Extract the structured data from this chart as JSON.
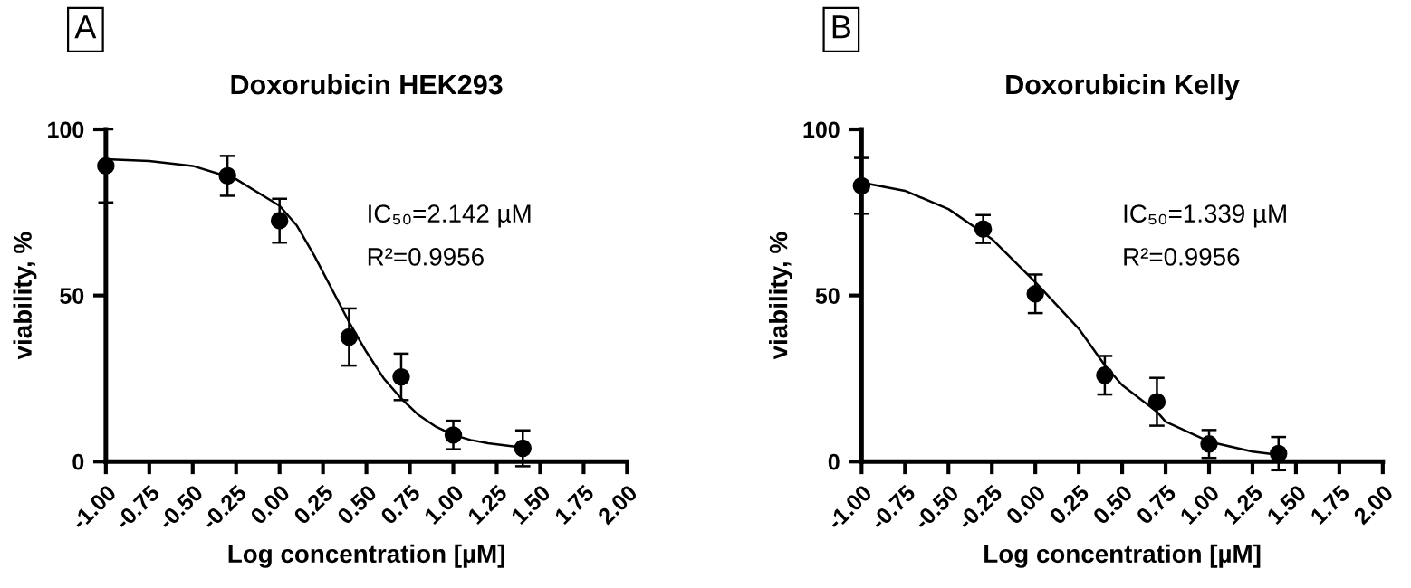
{
  "chart_data": [
    {
      "type": "scatter",
      "title": "Doxorubicin HEK293",
      "xlabel": "Log concentration [µM]",
      "ylabel": "viability, %",
      "annotations": [
        "A",
        "IC₅₀=2.142 µM",
        "R²=0.9956"
      ],
      "xlim": [
        -1,
        2
      ],
      "xticks": [
        {
          "value": -1,
          "label": "-1.00"
        },
        {
          "value": -0.75,
          "label": "-0.75"
        },
        {
          "value": -0.5,
          "label": "-0.50"
        },
        {
          "value": -0.25,
          "label": "-0.25"
        },
        {
          "value": 0,
          "label": "0.00"
        },
        {
          "value": 0.25,
          "label": "0.25"
        },
        {
          "value": 0.5,
          "label": "0.50"
        },
        {
          "value": 0.75,
          "label": "0.75"
        },
        {
          "value": 1,
          "label": "1.00"
        },
        {
          "value": 1.25,
          "label": "1.25"
        },
        {
          "value": 1.5,
          "label": "1.50"
        },
        {
          "value": 1.75,
          "label": "1.75"
        },
        {
          "value": 2,
          "label": "2.00"
        }
      ],
      "ylim": [
        0,
        100
      ],
      "yticks": [
        0,
        50,
        100
      ],
      "grid": false,
      "legend": false,
      "series": [
        {
          "color": "#000000",
          "marker": "circle",
          "x": [
            -1,
            -0.3,
            0,
            0.4,
            0.7,
            1.0,
            1.4
          ],
          "values": [
            89,
            86,
            72.5,
            37.5,
            25.5,
            8,
            4
          ],
          "errors": [
            11,
            6,
            6.6,
            8.6,
            7,
            4.3,
            5.4
          ]
        },
        {
          "type": "line",
          "color": "#000000",
          "marker": "none",
          "line_style": "solid",
          "x": [
            -1,
            -0.75,
            -0.5,
            -0.25,
            0,
            0.1,
            0.2,
            0.3,
            0.4,
            0.5,
            0.6,
            0.7,
            0.8,
            0.9,
            1.0,
            1.1,
            1.2,
            1.4
          ],
          "values": [
            91,
            90.5,
            89,
            85,
            77,
            71,
            62,
            52,
            42,
            33,
            25,
            19,
            14,
            10.5,
            8,
            6.5,
            5.5,
            4.2
          ]
        }
      ]
    },
    {
      "type": "scatter",
      "title": "Doxorubicin Kelly",
      "xlabel": "Log concentration [µM]",
      "ylabel": "viability, %",
      "annotations": [
        "B",
        "IC₅₀=1.339 µM",
        "R²=0.9956"
      ],
      "xlim": [
        -1,
        2
      ],
      "xticks": [
        {
          "value": -1,
          "label": "-1.00"
        },
        {
          "value": -0.75,
          "label": "-0.75"
        },
        {
          "value": -0.5,
          "label": "-0.50"
        },
        {
          "value": -0.25,
          "label": "-0.25"
        },
        {
          "value": 0,
          "label": "0.00"
        },
        {
          "value": 0.25,
          "label": "0.25"
        },
        {
          "value": 0.5,
          "label": "0.50"
        },
        {
          "value": 0.75,
          "label": "0.75"
        },
        {
          "value": 1,
          "label": "1.00"
        },
        {
          "value": 1.25,
          "label": "1.25"
        },
        {
          "value": 1.5,
          "label": "1.50"
        },
        {
          "value": 1.75,
          "label": "1.75"
        },
        {
          "value": 2,
          "label": "2.00"
        }
      ],
      "ylim": [
        0,
        100
      ],
      "yticks": [
        0,
        50,
        100
      ],
      "grid": false,
      "legend": false,
      "series": [
        {
          "color": "#000000",
          "marker": "circle",
          "x": [
            -1,
            -0.3,
            0,
            0.4,
            0.7,
            1.0,
            1.4
          ],
          "values": [
            83,
            70,
            50.5,
            26,
            18,
            5.3,
            2.4
          ],
          "errors": [
            8.4,
            4.2,
            5.8,
            5.8,
            7.2,
            4.2,
            5
          ]
        },
        {
          "type": "line",
          "color": "#000000",
          "marker": "none",
          "line_style": "solid",
          "x": [
            -1,
            -0.75,
            -0.5,
            -0.25,
            0,
            0.25,
            0.4,
            0.5,
            0.7,
            0.75,
            1.0,
            1.25,
            1.4
          ],
          "values": [
            84,
            81.5,
            76,
            67,
            54,
            40,
            29,
            23,
            15,
            12,
            6,
            3,
            2
          ]
        }
      ]
    }
  ]
}
